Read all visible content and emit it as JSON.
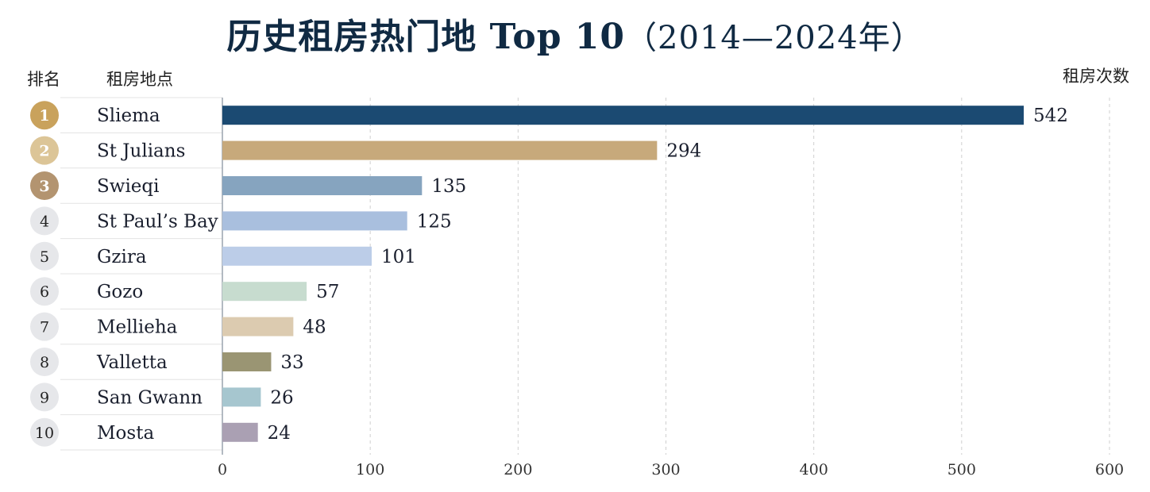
{
  "title": "历史租房热门地 Top 10",
  "subtitle": "（2014—2024年）",
  "headers": {
    "rank": "排名",
    "location": "租房地点",
    "count": "租房次数"
  },
  "colors": {
    "medal_gold": "#c9a25c",
    "medal_light": "#dcc597",
    "medal_bronze": "#b39470",
    "rank_default": "#e6e7ea"
  },
  "chart_data": {
    "type": "bar",
    "orientation": "horizontal",
    "title": "历史租房热门地 Top 10（2014—2024年）",
    "xlabel": "租房次数",
    "ylabel": "租房地点",
    "xlim": [
      0,
      600
    ],
    "xticks": [
      0,
      100,
      200,
      300,
      400,
      500,
      600
    ],
    "grid": true,
    "categories": [
      "Sliema",
      "St Julians",
      "Swieqi",
      "St Paul’s Bay",
      "Gzira",
      "Gozo",
      "Mellieha",
      "Valletta",
      "San Gwann",
      "Mosta"
    ],
    "ranks": [
      1,
      2,
      3,
      4,
      5,
      6,
      7,
      8,
      9,
      10
    ],
    "values": [
      542,
      294,
      135,
      125,
      101,
      57,
      48,
      33,
      26,
      24
    ],
    "bar_colors": [
      "#1b4a72",
      "#c7a97b",
      "#86a4bf",
      "#a9bfde",
      "#bccde8",
      "#c7dccf",
      "#dccbb0",
      "#9a9573",
      "#a6c6cf",
      "#aaa0b3"
    ]
  }
}
